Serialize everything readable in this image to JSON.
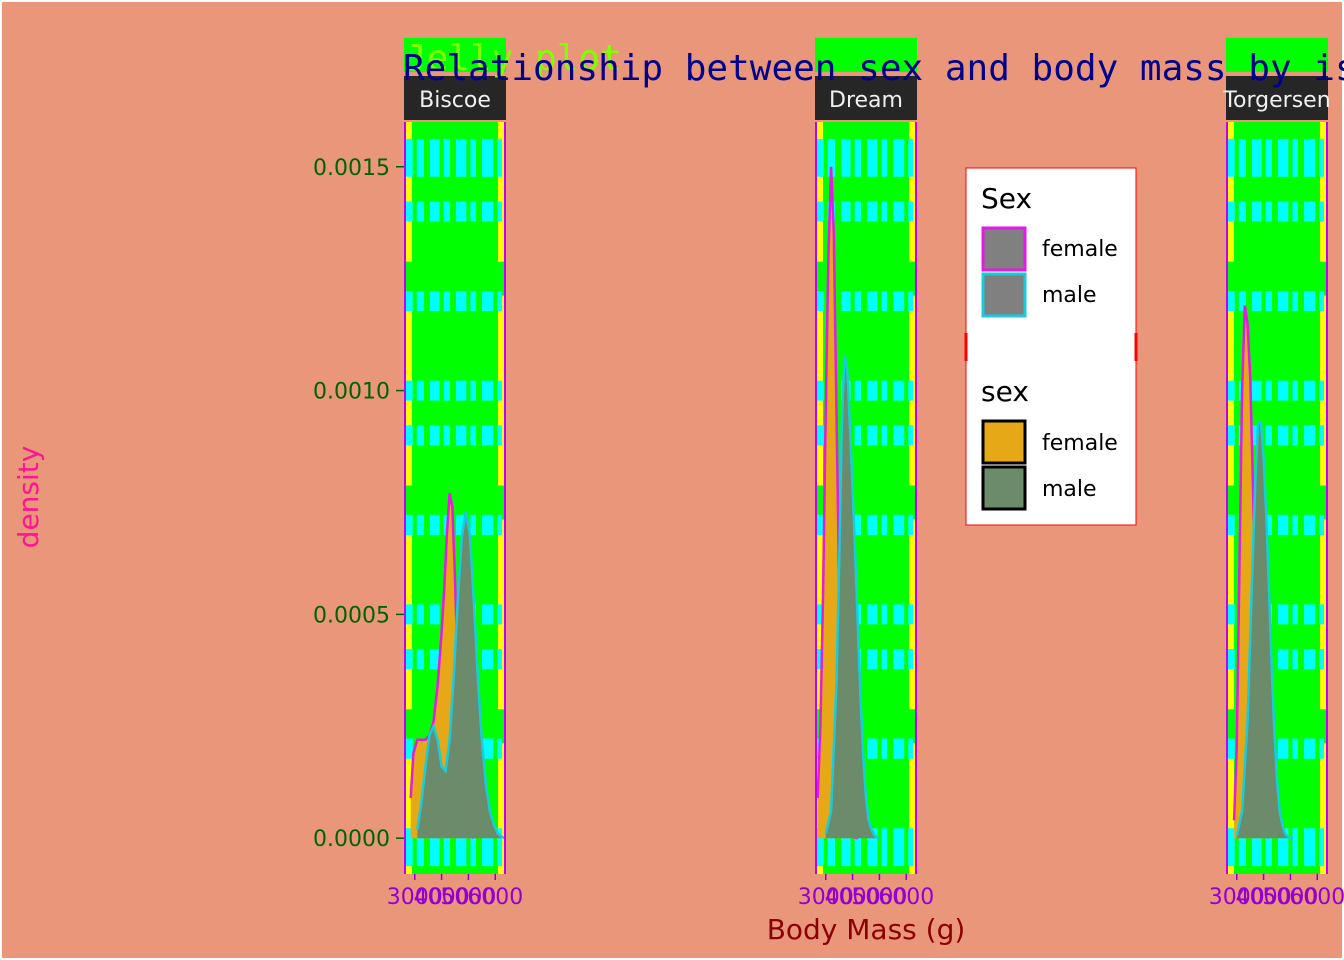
{
  "chart_data": {
    "type": "area",
    "title": "Relationship between sex and body mass by island",
    "subtitle": "Jelly plot",
    "xlabel": "Body Mass (g)",
    "ylabel": "density",
    "x_ticks": [
      "3000",
      "4000",
      "5000",
      "6000"
    ],
    "y_ticks": [
      "0.0000",
      "0.0005",
      "0.0010",
      "0.0015"
    ],
    "xlim": [
      2600,
      6400
    ],
    "ylim": [
      -8e-05,
      0.0016
    ],
    "grid": true,
    "legend_position": "right",
    "colors": {
      "female_fill": "#E6A817",
      "male_fill": "#6B8B6B",
      "female_line": "#E619E6",
      "male_line": "#19CCDD",
      "panel_bg": "#00FF00",
      "panel_border": "#FFFF00",
      "grid": "#00FFFF",
      "strip_bg": "#262626",
      "strip_text": "#F0F0F0",
      "title": "#00008B",
      "subtitle": "#7FFF00",
      "ylabel": "#FF1493",
      "xlabel": "#8B0000",
      "x_ticks": "#9400D3",
      "y_ticks": "#006400"
    },
    "facets": [
      {
        "island": "Biscoe",
        "series": [
          {
            "name": "female",
            "x": [
              2850,
              2950,
              3100,
              3250,
              3400,
              3550,
              3700,
              3850,
              4000,
              4100,
              4200,
              4300,
              4400,
              4500,
              4600,
              4700,
              4800,
              4900,
              5000,
              5100,
              5200
            ],
            "y": [
              9e-05,
              0.00019,
              0.00022,
              0.00022,
              0.00022,
              0.00023,
              0.00026,
              0.00034,
              0.00046,
              0.00056,
              0.00068,
              0.00077,
              0.00074,
              0.00058,
              0.00038,
              0.0002,
              0.0001,
              4e-05,
              2e-05,
              5e-06,
              0.0
            ]
          },
          {
            "name": "male",
            "x": [
              3100,
              3250,
              3400,
              3550,
              3700,
              3850,
              4000,
              4150,
              4300,
              4450,
              4600,
              4750,
              4900,
              5050,
              5200,
              5350,
              5500,
              5650,
              5800,
              5950,
              6100,
              6250,
              6350
            ],
            "y": [
              2e-05,
              8e-05,
              0.00016,
              0.00023,
              0.00025,
              0.00022,
              0.00016,
              0.00015,
              0.00022,
              0.00036,
              0.00053,
              0.00067,
              0.00073,
              0.00068,
              0.00053,
              0.00036,
              0.00022,
              0.00012,
              6e-05,
              3e-05,
              1e-05,
              3e-06,
              0.0
            ]
          }
        ]
      },
      {
        "island": "Dream",
        "series": [
          {
            "name": "female",
            "x": [
              2700,
              2800,
              2900,
              3000,
              3100,
              3200,
              3300,
              3400,
              3500,
              3600,
              3700,
              3800,
              3900,
              4000,
              4100,
              4200
            ],
            "y": [
              9e-05,
              0.00025,
              0.00055,
              0.00095,
              0.0013,
              0.0015,
              0.00135,
              0.00095,
              0.00055,
              0.00028,
              0.00013,
              5e-05,
              2e-05,
              5e-06,
              1e-06,
              0.0
            ]
          },
          {
            "name": "male",
            "x": [
              3000,
              3200,
              3400,
              3500,
              3600,
              3700,
              3800,
              3900,
              4000,
              4100,
              4200,
              4300,
              4400,
              4500,
              4600,
              4700,
              4800,
              4900,
              5000
            ],
            "y": [
              1e-05,
              6e-05,
              0.00035,
              0.00062,
              0.00092,
              0.00108,
              0.00105,
              0.00092,
              0.00078,
              0.00063,
              0.00047,
              0.00031,
              0.00018,
              9e-05,
              4e-05,
              2e-05,
              8e-06,
              2e-06,
              0.0
            ]
          }
        ]
      },
      {
        "island": "Torgersen",
        "series": [
          {
            "name": "female",
            "x": [
              2900,
              3000,
              3100,
              3200,
              3300,
              3400,
              3500,
              3600,
              3700,
              3800,
              3900,
              4000,
              4100,
              4200
            ],
            "y": [
              4e-05,
              0.0002,
              0.0006,
              0.001,
              0.00119,
              0.00115,
              0.00103,
              0.0008,
              0.00053,
              0.0003,
              0.00013,
              5e-05,
              1e-05,
              0.0
            ]
          },
          {
            "name": "male",
            "x": [
              3000,
              3200,
              3400,
              3600,
              3700,
              3800,
              3900,
              4000,
              4100,
              4200,
              4300,
              4400,
              4500,
              4600,
              4700,
              4800,
              4900,
              5000,
              5100
            ],
            "y": [
              5e-06,
              6e-05,
              0.00026,
              0.00063,
              0.00081,
              0.00093,
              0.00093,
              0.00085,
              0.00072,
              0.00056,
              0.00039,
              0.00024,
              0.00013,
              6e-05,
              3e-05,
              1e-05,
              4e-06,
              1e-06,
              0.0
            ]
          }
        ]
      }
    ],
    "legends": [
      {
        "title": "Sex",
        "items": [
          {
            "label": "female",
            "fill": "#808080",
            "border": "#E619E6"
          },
          {
            "label": "male",
            "fill": "#808080",
            "border": "#19CCDD"
          }
        ]
      },
      {
        "title": "sex",
        "items": [
          {
            "label": "female",
            "fill": "#E6A817",
            "border": "#000000"
          },
          {
            "label": "male",
            "fill": "#6B8B6B",
            "border": "#000000"
          }
        ]
      }
    ]
  }
}
